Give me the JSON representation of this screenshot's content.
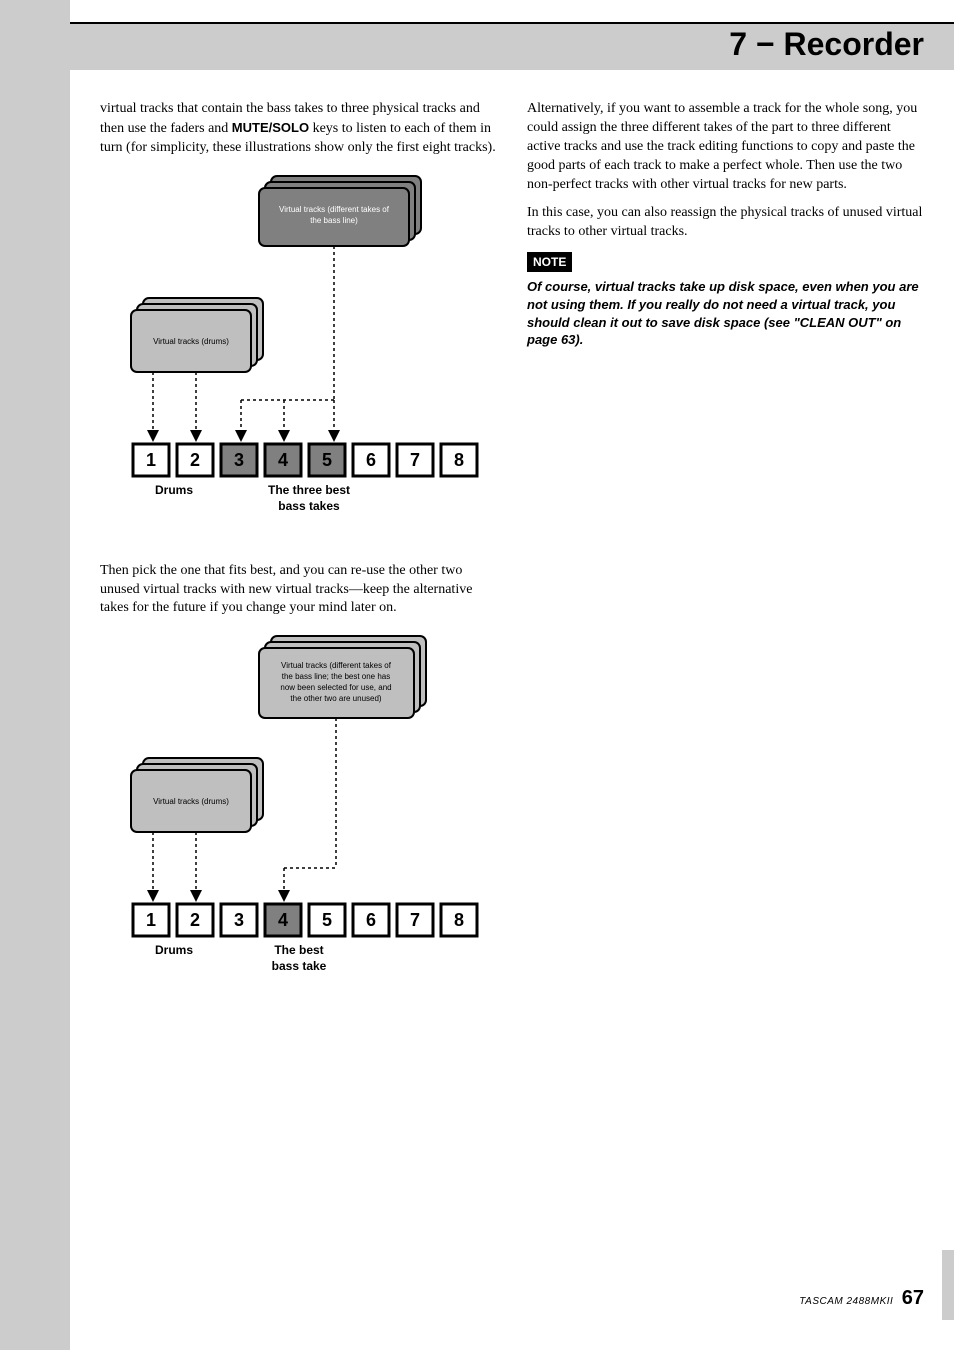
{
  "header": {
    "title": "7 − Recorder"
  },
  "left": {
    "p1_a": "virtual tracks that contain the bass takes to three physical tracks and then use the faders and ",
    "p1_key": "MUTE/SOLO",
    "p1_b": " keys to listen to each of them in turn (for simplicity, these illustrations show only the first eight tracks).",
    "p2": "Then pick the one that fits best, and you can re-use the other two unused virtual tracks with new virtual tracks—keep the alternative takes for the future if you change your mind later on."
  },
  "right": {
    "p1": "Alternatively, if you want to assemble a track for the whole song, you could assign the three different takes of the part to three different active tracks and use the track editing functions to copy and paste the good parts of each track to make a perfect whole. Then use the two non-perfect tracks with other virtual tracks for new parts.",
    "p2": "In this case, you can also reassign the physical tracks of unused virtual tracks to other virtual tracks.",
    "note_label": "NOTE",
    "note_text": "Of course, virtual tracks take up disk space, even when you are not using them. If you really do not need a virtual track, you should clean it out to save disk space (see \"CLEAN OUT\" on page 63)."
  },
  "diagram1": {
    "bass_caption_l1": "Virtual tracks (different takes of",
    "bass_caption_l2": "the bass line)",
    "drums_caption": "Virtual tracks (drums)",
    "tracks": [
      "1",
      "2",
      "3",
      "4",
      "5",
      "6",
      "7",
      "8"
    ],
    "drums_label": "Drums",
    "bass_label_l1": "The three best",
    "bass_label_l2": "bass takes",
    "highlight_tracks": [
      2,
      3,
      4
    ],
    "unhighlight_tracks": [
      0,
      1,
      5,
      6,
      7
    ],
    "colors": {
      "box_fill": "#bfbfbf",
      "box_stroke": "#000",
      "highlight_fill": "#808080",
      "track_fill": "#ffffff"
    }
  },
  "diagram2": {
    "bass_caption_l1": "Virtual tracks (different takes of",
    "bass_caption_l2": "the bass line; the best one has",
    "bass_caption_l3": "now been selected for use, and",
    "bass_caption_l4": "the other two are unused)",
    "drums_caption": "Virtual tracks (drums)",
    "tracks": [
      "1",
      "2",
      "3",
      "4",
      "5",
      "6",
      "7",
      "8"
    ],
    "drums_label": "Drums",
    "bass_label_l1": "The best",
    "bass_label_l2": "bass take",
    "highlight_tracks": [
      3
    ],
    "unhighlight_tracks": [
      0,
      1,
      2,
      4,
      5,
      6,
      7
    ],
    "colors": {
      "box_fill": "#bfbfbf",
      "box_stroke": "#000",
      "highlight_fill": "#808080",
      "track_fill": "#ffffff"
    }
  },
  "footer": {
    "model": "TASCAM  2488MKII",
    "page": "67"
  }
}
